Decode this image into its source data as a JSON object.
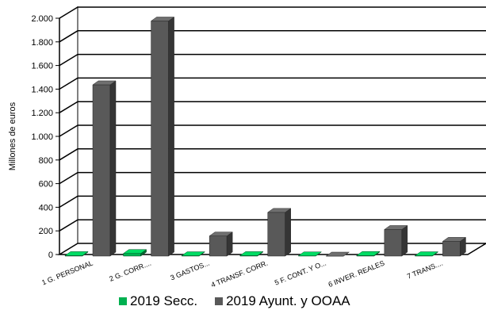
{
  "chart_data": {
    "type": "bar",
    "style": "3d-clustered",
    "ylabel": "Millones de euros",
    "ylim": [
      0,
      2000
    ],
    "yticks": [
      0,
      200,
      400,
      600,
      800,
      1000,
      1200,
      1400,
      1600,
      1800,
      2000
    ],
    "ytick_labels": [
      "0",
      "200",
      "400",
      "600",
      "800",
      "1.000",
      "1.200",
      "1.400",
      "1.600",
      "1.800",
      "2.000"
    ],
    "grid": true,
    "legend": "bottom",
    "categories": [
      "1 G. PERSONAL",
      "2 G. CORR....",
      "3 GASTOS...",
      "4 TRANSF. CORR.",
      "5 F. CONT. Y O...",
      "6 INVER. REALES",
      "7 TRANS...."
    ],
    "series": [
      {
        "name": "2019 Secc.",
        "color": "#00b050",
        "values": [
          4,
          22,
          3,
          4,
          2,
          5,
          3
        ]
      },
      {
        "name": "2019 Ayunt. y OOAA",
        "color": "#595959",
        "values": [
          1450,
          1990,
          170,
          370,
          0,
          225,
          125
        ]
      }
    ]
  }
}
